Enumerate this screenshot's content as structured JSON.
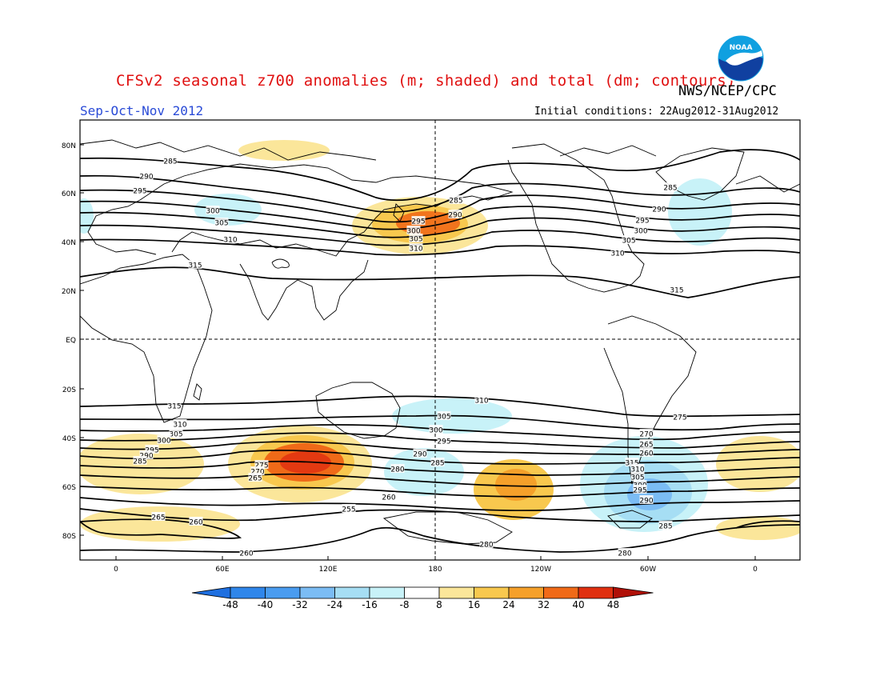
{
  "header": {
    "title": "CFSv2 seasonal z700 anomalies (m; shaded) and total (dm; contours)",
    "agency": "NWS/NCEP/CPC",
    "season": "Sep-Oct-Nov 2012",
    "initial_conditions": "Initial conditions: 22Aug2012-31Aug2012",
    "logo_text": "NOAA"
  },
  "map": {
    "lat_labels": [
      "80N",
      "60N",
      "40N",
      "20N",
      "EQ",
      "20S",
      "40S",
      "60S",
      "80S"
    ],
    "lon_labels": [
      "0",
      "60E",
      "120E",
      "180",
      "120W",
      "60W",
      "0"
    ],
    "contour_labels": [
      "285",
      "290",
      "295",
      "300",
      "305",
      "310",
      "315",
      "285",
      "290",
      "295",
      "300",
      "305",
      "310",
      "285",
      "290",
      "295",
      "300",
      "305",
      "310",
      "315",
      "310",
      "305",
      "300",
      "295",
      "290",
      "285",
      "280",
      "275",
      "270",
      "265",
      "260",
      "255",
      "315",
      "310",
      "305",
      "300",
      "295",
      "290",
      "285",
      "280",
      "275",
      "270",
      "265",
      "260",
      "315",
      "310",
      "305",
      "300",
      "295",
      "290",
      "285",
      "280",
      "270",
      "265",
      "260",
      "255",
      "260",
      "265"
    ],
    "colors": {
      "neg_48": "#1e6fe0",
      "neg_40": "#2f86ea",
      "neg_32": "#4a9cf0",
      "neg_24": "#7bbcf4",
      "neg_16": "#a6def4",
      "neg_8": "#c8f2f8",
      "zero": "#ffffff",
      "pos_8": "#fbe69a",
      "pos_16": "#f8c84e",
      "pos_24": "#f5a02a",
      "pos_32": "#f06a18",
      "pos_40": "#e03010",
      "pos_48": "#b01008"
    }
  },
  "colorbar": {
    "ticks": [
      "-48",
      "-40",
      "-32",
      "-24",
      "-16",
      "-8",
      "8",
      "16",
      "24",
      "32",
      "40",
      "48"
    ]
  }
}
